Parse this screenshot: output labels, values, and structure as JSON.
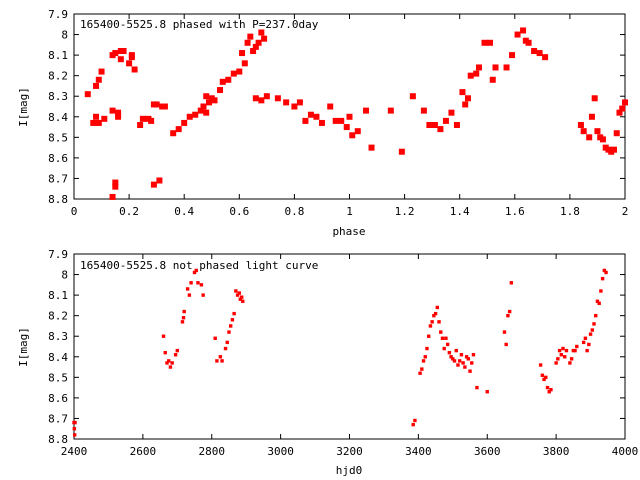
{
  "chart_data": [
    {
      "type": "scatter",
      "title": "165400-5525.8 phased with P=237.0day",
      "xlabel": "phase",
      "ylabel": "I[mag]",
      "xlim": [
        0,
        2
      ],
      "ylim": [
        8.8,
        7.9
      ],
      "y_inverted": true,
      "grid": false,
      "marker_color": "#ff0000",
      "xticks": [
        "0",
        "0.2",
        "0.4",
        "0.6",
        "0.8",
        "1",
        "1.2",
        "1.4",
        "1.6",
        "1.8",
        "2"
      ],
      "yticks": [
        "7.9",
        "8",
        "8.1",
        "8.2",
        "8.3",
        "8.4",
        "8.5",
        "8.6",
        "8.7",
        "8.8"
      ],
      "series": [
        {
          "points": [
            [
              0.05,
              8.29
            ],
            [
              0.07,
              8.43
            ],
            [
              0.08,
              8.4
            ],
            [
              0.09,
              8.43
            ],
            [
              0.08,
              8.25
            ],
            [
              0.09,
              8.22
            ],
            [
              0.1,
              8.18
            ],
            [
              0.11,
              8.41
            ],
            [
              0.14,
              8.37
            ],
            [
              0.14,
              8.1
            ],
            [
              0.14,
              8.79
            ],
            [
              0.15,
              8.72
            ],
            [
              0.15,
              8.74
            ],
            [
              0.15,
              8.09
            ],
            [
              0.16,
              8.4
            ],
            [
              0.16,
              8.38
            ],
            [
              0.17,
              8.12
            ],
            [
              0.17,
              8.08
            ],
            [
              0.18,
              8.08
            ],
            [
              0.2,
              8.14
            ],
            [
              0.21,
              8.1
            ],
            [
              0.21,
              8.11
            ],
            [
              0.22,
              8.17
            ],
            [
              0.24,
              8.44
            ],
            [
              0.25,
              8.41
            ],
            [
              0.27,
              8.41
            ],
            [
              0.28,
              8.42
            ],
            [
              0.29,
              8.73
            ],
            [
              0.29,
              8.34
            ],
            [
              0.3,
              8.34
            ],
            [
              0.31,
              8.71
            ],
            [
              0.32,
              8.35
            ],
            [
              0.33,
              8.35
            ],
            [
              0.36,
              8.48
            ],
            [
              0.38,
              8.46
            ],
            [
              0.4,
              8.43
            ],
            [
              0.42,
              8.4
            ],
            [
              0.44,
              8.39
            ],
            [
              0.46,
              8.37
            ],
            [
              0.47,
              8.35
            ],
            [
              0.48,
              8.3
            ],
            [
              0.48,
              8.38
            ],
            [
              0.49,
              8.33
            ],
            [
              0.5,
              8.31
            ],
            [
              0.51,
              8.32
            ],
            [
              0.53,
              8.27
            ],
            [
              0.54,
              8.23
            ],
            [
              0.56,
              8.22
            ],
            [
              0.58,
              8.19
            ],
            [
              0.6,
              8.18
            ],
            [
              0.61,
              8.09
            ],
            [
              0.62,
              8.14
            ],
            [
              0.63,
              8.04
            ],
            [
              0.64,
              8.01
            ],
            [
              0.65,
              8.08
            ],
            [
              0.66,
              8.06
            ],
            [
              0.67,
              8.04
            ],
            [
              0.68,
              7.99
            ],
            [
              0.69,
              8.02
            ],
            [
              0.66,
              8.31
            ],
            [
              0.68,
              8.32
            ],
            [
              0.7,
              8.3
            ],
            [
              0.74,
              8.31
            ],
            [
              0.77,
              8.33
            ],
            [
              0.8,
              8.35
            ],
            [
              0.82,
              8.33
            ],
            [
              0.84,
              8.42
            ],
            [
              0.86,
              8.39
            ],
            [
              0.88,
              8.4
            ],
            [
              0.9,
              8.43
            ],
            [
              0.93,
              8.35
            ],
            [
              0.95,
              8.42
            ],
            [
              0.97,
              8.42
            ],
            [
              0.99,
              8.45
            ],
            [
              1.0,
              8.4
            ],
            [
              1.01,
              8.49
            ],
            [
              1.03,
              8.47
            ],
            [
              1.06,
              8.37
            ],
            [
              1.08,
              8.55
            ],
            [
              1.15,
              8.37
            ],
            [
              1.19,
              8.57
            ],
            [
              1.23,
              8.3
            ],
            [
              1.27,
              8.37
            ],
            [
              1.29,
              8.44
            ],
            [
              1.31,
              8.44
            ],
            [
              1.33,
              8.46
            ],
            [
              1.35,
              8.42
            ],
            [
              1.37,
              8.38
            ],
            [
              1.39,
              8.44
            ],
            [
              1.41,
              8.28
            ],
            [
              1.42,
              8.34
            ],
            [
              1.43,
              8.31
            ],
            [
              1.44,
              8.2
            ],
            [
              1.46,
              8.19
            ],
            [
              1.47,
              8.16
            ],
            [
              1.49,
              8.04
            ],
            [
              1.51,
              8.04
            ],
            [
              1.52,
              8.22
            ],
            [
              1.53,
              8.16
            ],
            [
              1.57,
              8.16
            ],
            [
              1.59,
              8.1
            ],
            [
              1.61,
              8.0
            ],
            [
              1.63,
              7.98
            ],
            [
              1.64,
              8.03
            ],
            [
              1.65,
              8.04
            ],
            [
              1.67,
              8.08
            ],
            [
              1.69,
              8.09
            ],
            [
              1.71,
              8.11
            ],
            [
              1.84,
              8.44
            ],
            [
              1.85,
              8.47
            ],
            [
              1.87,
              8.5
            ],
            [
              1.88,
              8.4
            ],
            [
              1.89,
              8.31
            ],
            [
              1.9,
              8.47
            ],
            [
              1.91,
              8.5
            ],
            [
              1.92,
              8.51
            ],
            [
              1.93,
              8.55
            ],
            [
              1.94,
              8.56
            ],
            [
              1.95,
              8.57
            ],
            [
              1.96,
              8.56
            ],
            [
              1.97,
              8.48
            ],
            [
              1.98,
              8.38
            ],
            [
              1.99,
              8.36
            ],
            [
              2.0,
              8.33
            ]
          ]
        }
      ]
    },
    {
      "type": "scatter",
      "title": "165400-5525.8 not phased light curve",
      "xlabel": "hjd0",
      "ylabel": "I[mag]",
      "xlim": [
        2400,
        4000
      ],
      "ylim": [
        8.8,
        7.9
      ],
      "y_inverted": true,
      "grid": false,
      "marker_color": "#ff0000",
      "xticks": [
        "2400",
        "2600",
        "2800",
        "3000",
        "3200",
        "3400",
        "3600",
        "3800",
        "4000"
      ],
      "yticks": [
        "7.9",
        "8",
        "8.1",
        "8.2",
        "8.3",
        "8.4",
        "8.5",
        "8.6",
        "8.7",
        "8.8"
      ],
      "series": [
        {
          "points": [
            [
              2400,
              8.72
            ],
            [
              2401,
              8.75
            ],
            [
              2402,
              8.78
            ],
            [
              2403,
              8.72
            ],
            [
              2660,
              8.3
            ],
            [
              2665,
              8.38
            ],
            [
              2670,
              8.43
            ],
            [
              2675,
              8.42
            ],
            [
              2680,
              8.45
            ],
            [
              2685,
              8.43
            ],
            [
              2695,
              8.39
            ],
            [
              2700,
              8.37
            ],
            [
              2715,
              8.23
            ],
            [
              2718,
              8.21
            ],
            [
              2720,
              8.18
            ],
            [
              2730,
              8.07
            ],
            [
              2735,
              8.1
            ],
            [
              2740,
              8.04
            ],
            [
              2750,
              7.99
            ],
            [
              2755,
              7.98
            ],
            [
              2760,
              8.04
            ],
            [
              2770,
              8.05
            ],
            [
              2775,
              8.1
            ],
            [
              2810,
              8.31
            ],
            [
              2815,
              8.42
            ],
            [
              2825,
              8.4
            ],
            [
              2830,
              8.42
            ],
            [
              2840,
              8.36
            ],
            [
              2845,
              8.33
            ],
            [
              2850,
              8.28
            ],
            [
              2855,
              8.25
            ],
            [
              2860,
              8.22
            ],
            [
              2865,
              8.19
            ],
            [
              2870,
              8.08
            ],
            [
              2875,
              8.1
            ],
            [
              2880,
              8.09
            ],
            [
              2883,
              8.12
            ],
            [
              2887,
              8.11
            ],
            [
              2890,
              8.13
            ],
            [
              3385,
              8.73
            ],
            [
              3390,
              8.71
            ],
            [
              3405,
              8.48
            ],
            [
              3410,
              8.46
            ],
            [
              3415,
              8.42
            ],
            [
              3420,
              8.4
            ],
            [
              3425,
              8.36
            ],
            [
              3430,
              8.3
            ],
            [
              3435,
              8.25
            ],
            [
              3440,
              8.23
            ],
            [
              3445,
              8.2
            ],
            [
              3450,
              8.19
            ],
            [
              3455,
              8.16
            ],
            [
              3460,
              8.23
            ],
            [
              3465,
              8.28
            ],
            [
              3470,
              8.31
            ],
            [
              3475,
              8.36
            ],
            [
              3480,
              8.31
            ],
            [
              3485,
              8.34
            ],
            [
              3490,
              8.38
            ],
            [
              3495,
              8.4
            ],
            [
              3500,
              8.41
            ],
            [
              3505,
              8.42
            ],
            [
              3510,
              8.37
            ],
            [
              3515,
              8.44
            ],
            [
              3520,
              8.42
            ],
            [
              3525,
              8.39
            ],
            [
              3530,
              8.43
            ],
            [
              3535,
              8.45
            ],
            [
              3540,
              8.4
            ],
            [
              3545,
              8.41
            ],
            [
              3550,
              8.47
            ],
            [
              3555,
              8.43
            ],
            [
              3560,
              8.39
            ],
            [
              3570,
              8.55
            ],
            [
              3600,
              8.57
            ],
            [
              3650,
              8.28
            ],
            [
              3655,
              8.34
            ],
            [
              3660,
              8.2
            ],
            [
              3665,
              8.18
            ],
            [
              3670,
              8.04
            ],
            [
              3755,
              8.44
            ],
            [
              3760,
              8.49
            ],
            [
              3765,
              8.51
            ],
            [
              3770,
              8.5
            ],
            [
              3775,
              8.55
            ],
            [
              3780,
              8.57
            ],
            [
              3785,
              8.56
            ],
            [
              3800,
              8.43
            ],
            [
              3805,
              8.41
            ],
            [
              3810,
              8.37
            ],
            [
              3815,
              8.39
            ],
            [
              3820,
              8.36
            ],
            [
              3825,
              8.4
            ],
            [
              3830,
              8.37
            ],
            [
              3840,
              8.43
            ],
            [
              3845,
              8.41
            ],
            [
              3850,
              8.37
            ],
            [
              3855,
              8.37
            ],
            [
              3860,
              8.35
            ],
            [
              3880,
              8.33
            ],
            [
              3885,
              8.31
            ],
            [
              3890,
              8.37
            ],
            [
              3895,
              8.34
            ],
            [
              3900,
              8.29
            ],
            [
              3905,
              8.27
            ],
            [
              3910,
              8.24
            ],
            [
              3915,
              8.2
            ],
            [
              3920,
              8.13
            ],
            [
              3925,
              8.14
            ],
            [
              3930,
              8.08
            ],
            [
              3935,
              8.02
            ],
            [
              3940,
              7.98
            ],
            [
              3945,
              7.99
            ]
          ]
        }
      ]
    }
  ]
}
